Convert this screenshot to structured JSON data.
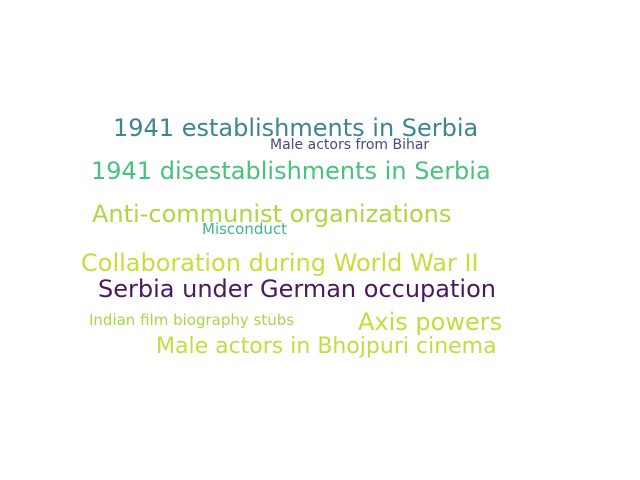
{
  "words": [
    {
      "text": "1941 establishments in Serbia",
      "color": "#3e868d"
    },
    {
      "text": "Male actors from Bihar",
      "color": "#444a85"
    },
    {
      "text": "1941 disestablishments in Serbia",
      "color": "#47c27a"
    },
    {
      "text": "Anti-communist organizations",
      "color": "#aed640"
    },
    {
      "text": "Misconduct",
      "color": "#3cb68b"
    },
    {
      "text": "Collaboration during World War II",
      "color": "#c6dd3e"
    },
    {
      "text": "Serbia under German occupation",
      "color": "#4a1861"
    },
    {
      "text": "Indian film biography stubs",
      "color": "#a6d74a"
    },
    {
      "text": "Axis powers",
      "color": "#c2dc3c"
    },
    {
      "text": "Male actors in Bhojpuri cinema",
      "color": "#c3dc42"
    }
  ]
}
